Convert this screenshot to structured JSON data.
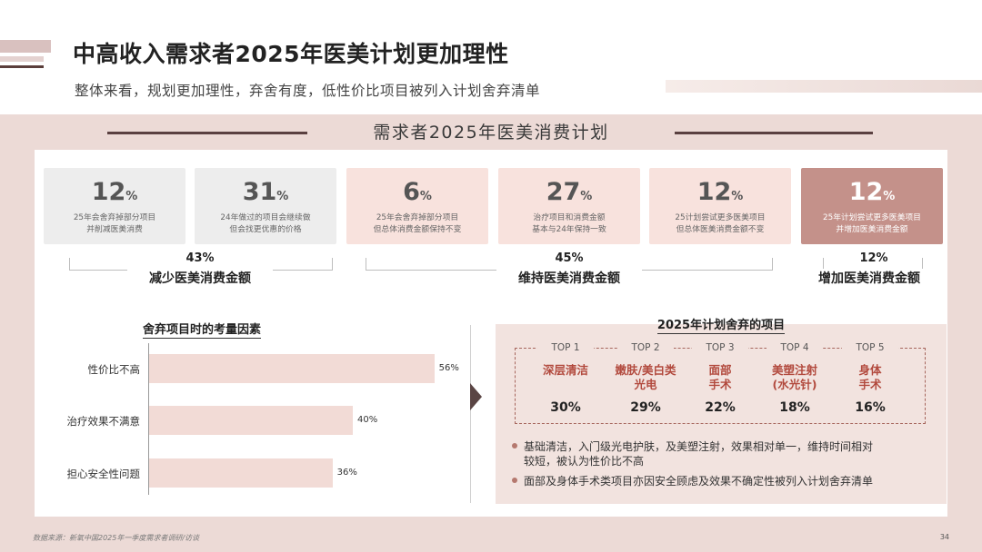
{
  "header": {
    "title": "中高收入需求者2025年医美计划更加理性",
    "subtitle": "整体来看，规划更加理性，弃舍有度，低性价比项目被列入计划舍弃清单"
  },
  "section_title": "需求者2025年医美消费计划",
  "cards": [
    {
      "value": "12",
      "unit": "%",
      "line1": "25年会舍弃掉部分项目",
      "line2": "并削减医美消费",
      "bg": "#ededed",
      "color": "#555555",
      "dcolor": "#666666"
    },
    {
      "value": "31",
      "unit": "%",
      "line1": "24年做过的项目会继续做",
      "line2": "但会找更优惠的价格",
      "bg": "#ededed",
      "color": "#555555",
      "dcolor": "#666666"
    },
    {
      "value": "6",
      "unit": "%",
      "line1": "25年会舍弃掉部分项目",
      "line2": "但总体消费金额保持不变",
      "bg": "#f8e2dd",
      "color": "#555555",
      "dcolor": "#666666"
    },
    {
      "value": "27",
      "unit": "%",
      "line1": "治疗项目和消费金额",
      "line2": "基本与24年保持一致",
      "bg": "#f8e2dd",
      "color": "#555555",
      "dcolor": "#666666"
    },
    {
      "value": "12",
      "unit": "%",
      "line1": "25计划尝试更多医美项目",
      "line2": "但总体医美消费金额不变",
      "bg": "#f8e2dd",
      "color": "#555555",
      "dcolor": "#666666"
    },
    {
      "value": "12",
      "unit": "%",
      "line1": "25年计划尝试更多医美项目",
      "line2": "并增加医美消费金额",
      "bg": "#c4918a",
      "color": "#ffffff",
      "dcolor": "#ffffff"
    }
  ],
  "groups": [
    {
      "pct": "43%",
      "label": "减少医美消费金额"
    },
    {
      "pct": "45%",
      "label": "维持医美消费金额"
    },
    {
      "pct": "12%",
      "label": "增加医美消费金额"
    }
  ],
  "chart_data": {
    "type": "bar",
    "orientation": "horizontal",
    "title": "舍弃项目时的考量因素",
    "categories": [
      "性价比不高",
      "治疗效果不满意",
      "担心安全性问题"
    ],
    "values": [
      56,
      40,
      36
    ],
    "value_labels": [
      "56%",
      "40%",
      "36%"
    ],
    "xlim": [
      0,
      100
    ],
    "color": "#f2dbd6"
  },
  "plan": {
    "title": "2025年计划舍弃的项目",
    "items": [
      {
        "tag": "TOP 1",
        "name1": "深层清洁",
        "name2": "",
        "pct": "30%"
      },
      {
        "tag": "TOP 2",
        "name1": "嫩肤/美白类",
        "name2": "光电",
        "pct": "29%"
      },
      {
        "tag": "TOP 3",
        "name1": "面部",
        "name2": "手术",
        "pct": "22%"
      },
      {
        "tag": "TOP 4",
        "name1": "美塑注射",
        "name2": "(水光针)",
        "pct": "18%"
      },
      {
        "tag": "TOP 5",
        "name1": "身体",
        "name2": "手术",
        "pct": "16%"
      }
    ],
    "bullets": [
      {
        "line1": "基础清洁，入门级光电护肤，及美塑注射，效果相对单一，维持时间相对",
        "line2": "较短，被认为性价比不高"
      },
      {
        "line1": "面部及身体手术类项目亦因安全顾虑及效果不确定性被列入计划舍弃清单",
        "line2": ""
      }
    ]
  },
  "footer": {
    "source": "数据来源：新氧中国2025年一季度需求者调研/访谈",
    "page": "34"
  }
}
